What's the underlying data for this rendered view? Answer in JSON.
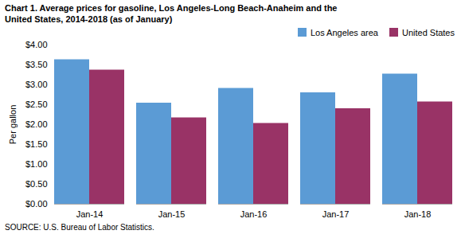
{
  "chart_data": {
    "type": "bar",
    "title": "Chart 1. Average prices for gasoline, Los Angeles-Long Beach-Anaheim and the",
    "subtitle": "United States, 2014-2018  (as of January)",
    "ylabel": "Per gallon",
    "categories": [
      "Jan-14",
      "Jan-15",
      "Jan-16",
      "Jan-17",
      "Jan-18"
    ],
    "series": [
      {
        "name": "Los Angeles area",
        "color": "#5B9BD5",
        "values": [
          3.63,
          2.54,
          2.91,
          2.8,
          3.27
        ]
      },
      {
        "name": "United States",
        "color": "#993366",
        "values": [
          3.37,
          2.17,
          2.03,
          2.4,
          2.57
        ]
      }
    ],
    "ylim": [
      0,
      4.0
    ],
    "yticks": [
      {
        "value": 0.0,
        "label": "$0.00"
      },
      {
        "value": 0.5,
        "label": "$0.50"
      },
      {
        "value": 1.0,
        "label": "$1.00"
      },
      {
        "value": 1.5,
        "label": "$1.50"
      },
      {
        "value": 2.0,
        "label": "$2.00"
      },
      {
        "value": 2.5,
        "label": "$2.50"
      },
      {
        "value": 3.0,
        "label": "$3.00"
      },
      {
        "value": 3.5,
        "label": "$3.50"
      },
      {
        "value": 4.0,
        "label": "$4.00"
      }
    ],
    "grid": false,
    "legend": "upper right",
    "source": "SOURCE: U.S. Bureau of Labor Statistics."
  }
}
